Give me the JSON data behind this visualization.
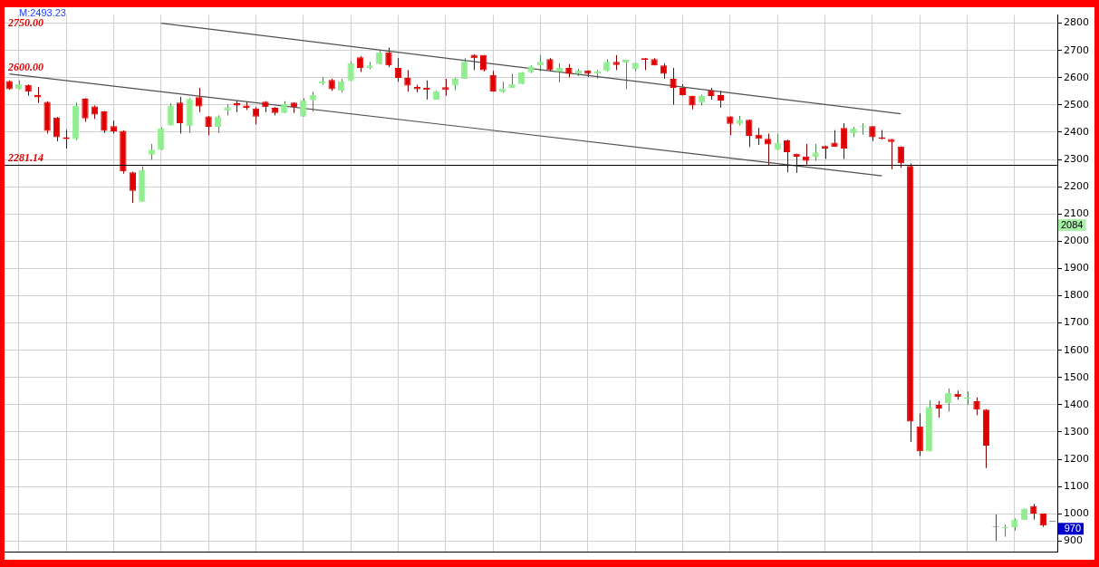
{
  "chart_data": {
    "type": "candlestick",
    "categories": [
      null,
      null,
      null,
      null,
      null,
      null,
      null,
      null,
      null,
      null,
      null,
      null,
      null,
      null,
      null,
      null,
      null,
      null,
      null,
      null,
      null,
      null,
      null,
      null,
      null,
      null,
      null,
      null,
      null,
      null,
      null,
      null,
      null,
      null,
      null,
      null,
      null,
      null,
      null,
      null,
      null,
      null,
      null,
      null,
      null,
      null,
      null,
      null,
      null,
      null,
      null,
      null,
      null,
      null,
      null,
      null,
      null,
      null,
      null,
      null,
      null,
      null,
      null,
      null,
      null,
      null,
      null,
      null,
      null,
      null,
      null,
      null,
      null,
      null,
      null,
      null,
      null,
      null,
      null,
      null,
      null,
      null,
      null,
      null,
      null,
      null,
      null,
      null,
      null,
      null,
      null,
      null,
      null,
      null,
      null,
      null,
      null,
      null,
      null,
      null,
      null,
      null,
      null,
      null,
      null,
      null,
      null,
      null,
      null,
      null,
      null
    ],
    "ohlc": [
      [
        2588,
        2590,
        2556,
        2558
      ],
      [
        2558,
        2590,
        2557,
        2577
      ],
      [
        2574,
        2575,
        2534,
        2549
      ],
      [
        2536,
        2566,
        2507,
        2528
      ],
      [
        2511,
        2514,
        2395,
        2405
      ],
      [
        2454,
        2456,
        2367,
        2382
      ],
      [
        2382,
        2409,
        2340,
        2375
      ],
      [
        2375,
        2509,
        2371,
        2496
      ],
      [
        2523,
        2525,
        2438,
        2451
      ],
      [
        2495,
        2498,
        2449,
        2465
      ],
      [
        2476,
        2478,
        2397,
        2405
      ],
      [
        2422,
        2443,
        2395,
        2403
      ],
      [
        2405,
        2407,
        2248,
        2256
      ],
      [
        2253,
        2255,
        2141,
        2185
      ],
      [
        2145,
        2275,
        2145,
        2262
      ],
      [
        2318,
        2357,
        2299,
        2336
      ],
      [
        2335,
        2418,
        2335,
        2414
      ],
      [
        2425,
        2506,
        2425,
        2496
      ],
      [
        2509,
        2530,
        2395,
        2433
      ],
      [
        2422,
        2525,
        2397,
        2522
      ],
      [
        2529,
        2563,
        2474,
        2495
      ],
      [
        2458,
        2460,
        2389,
        2420
      ],
      [
        2420,
        2462,
        2397,
        2458
      ],
      [
        2479,
        2503,
        2462,
        2492
      ],
      [
        2506,
        2516,
        2474,
        2498
      ],
      [
        2498,
        2512,
        2482,
        2490
      ],
      [
        2487,
        2492,
        2429,
        2457
      ],
      [
        2512,
        2514,
        2474,
        2492
      ],
      [
        2490,
        2492,
        2462,
        2471
      ],
      [
        2471,
        2514,
        2471,
        2503
      ],
      [
        2509,
        2509,
        2471,
        2492
      ],
      [
        2457,
        2525,
        2457,
        2517
      ],
      [
        2517,
        2549,
        2476,
        2536
      ],
      [
        2579,
        2603,
        2574,
        2587
      ],
      [
        2592,
        2596,
        2552,
        2558
      ],
      [
        2552,
        2596,
        2547,
        2588
      ],
      [
        2588,
        2661,
        2588,
        2653
      ],
      [
        2675,
        2679,
        2621,
        2636
      ],
      [
        2636,
        2658,
        2631,
        2645
      ],
      [
        2650,
        2701,
        2650,
        2693
      ],
      [
        2693,
        2710,
        2639,
        2645
      ],
      [
        2636,
        2672,
        2585,
        2599
      ],
      [
        2599,
        2628,
        2549,
        2571
      ],
      [
        2566,
        2574,
        2547,
        2558
      ],
      [
        2563,
        2590,
        2520,
        2555
      ],
      [
        2520,
        2552,
        2520,
        2550
      ],
      [
        2565,
        2596,
        2534,
        2555
      ],
      [
        2571,
        2599,
        2555,
        2596
      ],
      [
        2596,
        2672,
        2596,
        2661
      ],
      [
        2684,
        2686,
        2628,
        2672
      ],
      [
        2683,
        2683,
        2623,
        2628
      ],
      [
        2610,
        2625,
        2549,
        2549
      ],
      [
        2547,
        2585,
        2545,
        2561
      ],
      [
        2563,
        2614,
        2563,
        2577
      ],
      [
        2577,
        2620,
        2577,
        2620
      ],
      [
        2620,
        2645,
        2617,
        2642
      ],
      [
        2645,
        2683,
        2623,
        2658
      ],
      [
        2668,
        2672,
        2623,
        2628
      ],
      [
        2621,
        2653,
        2583,
        2636
      ],
      [
        2636,
        2650,
        2601,
        2614
      ],
      [
        2614,
        2632,
        2606,
        2627
      ],
      [
        2627,
        2627,
        2603,
        2614
      ],
      [
        2615,
        2628,
        2596,
        2623
      ],
      [
        2625,
        2668,
        2623,
        2658
      ],
      [
        2658,
        2683,
        2628,
        2647
      ],
      [
        2655,
        2666,
        2558,
        2666
      ],
      [
        2631,
        2655,
        2623,
        2655
      ],
      [
        2672,
        2672,
        2628,
        2666
      ],
      [
        2668,
        2672,
        2645,
        2645
      ],
      [
        2645,
        2653,
        2596,
        2614
      ],
      [
        2596,
        2636,
        2501,
        2563
      ],
      [
        2563,
        2576,
        2534,
        2536
      ],
      [
        2534,
        2534,
        2484,
        2498
      ],
      [
        2509,
        2538,
        2498,
        2533
      ],
      [
        2554,
        2563,
        2520,
        2533
      ],
      [
        2536,
        2552,
        2490,
        2516
      ],
      [
        2458,
        2458,
        2389,
        2431
      ],
      [
        2431,
        2460,
        2425,
        2446
      ],
      [
        2446,
        2446,
        2346,
        2387
      ],
      [
        2391,
        2416,
        2353,
        2376
      ],
      [
        2376,
        2395,
        2277,
        2355
      ],
      [
        2335,
        2395,
        2335,
        2362
      ],
      [
        2371,
        2373,
        2253,
        2327
      ],
      [
        2321,
        2321,
        2251,
        2310
      ],
      [
        2311,
        2357,
        2281,
        2295
      ],
      [
        2310,
        2357,
        2295,
        2326
      ],
      [
        2349,
        2351,
        2302,
        2340
      ],
      [
        2362,
        2408,
        2346,
        2346
      ],
      [
        2416,
        2433,
        2302,
        2340
      ],
      [
        2397,
        2419,
        2382,
        2413
      ],
      [
        2418,
        2433,
        2391,
        2422
      ],
      [
        2422,
        2422,
        2368,
        2382
      ],
      [
        2382,
        2408,
        2373,
        2376
      ],
      [
        2375,
        2375,
        2264,
        2364
      ],
      [
        2348,
        2348,
        2270,
        2286
      ],
      [
        2276,
        2285,
        1264,
        1338
      ],
      [
        1321,
        1368,
        1212,
        1229
      ],
      [
        1229,
        1417,
        1229,
        1392
      ],
      [
        1400,
        1414,
        1353,
        1386
      ],
      [
        1406,
        1460,
        1375,
        1444
      ],
      [
        1440,
        1452,
        1419,
        1430
      ],
      [
        1421,
        1449,
        1400,
        1427
      ],
      [
        1413,
        1427,
        1362,
        1382
      ],
      [
        1382,
        1384,
        1168,
        1250
      ],
      [
        952,
        998,
        900,
        952
      ],
      [
        947,
        960,
        916,
        951
      ],
      [
        951,
        983,
        938,
        979
      ],
      [
        978,
        1019,
        978,
        1019
      ],
      [
        1028,
        1036,
        979,
        1001
      ],
      [
        1001,
        1001,
        952,
        957
      ],
      [
        970,
        970,
        970,
        970
      ]
    ],
    "colors": [
      "#e00000",
      "#90ee90",
      "#e00000",
      "#e00000",
      "#e00000",
      "#e00000",
      "#e00000",
      "#90ee90",
      "#e00000",
      "#e00000",
      "#e00000",
      "#e00000",
      "#e00000",
      "#e00000",
      "#90ee90",
      "#90ee90",
      "#90ee90",
      "#90ee90",
      "#e00000",
      "#90ee90",
      "#e00000",
      "#e00000",
      "#90ee90",
      "#90ee90",
      "#e00000",
      "#e00000",
      "#e00000",
      "#e00000",
      "#e00000",
      "#90ee90",
      "#e00000",
      "#90ee90",
      "#90ee90",
      "#90ee90",
      "#e00000",
      "#90ee90",
      "#90ee90",
      "#e00000",
      "#90ee90",
      "#90ee90",
      "#e00000",
      "#e00000",
      "#e00000",
      "#e00000",
      "#e00000",
      "#90ee90",
      "#e00000",
      "#90ee90",
      "#90ee90",
      "#e00000",
      "#e00000",
      "#e00000",
      "#90ee90",
      "#90ee90",
      "#90ee90",
      "#90ee90",
      "#90ee90",
      "#e00000",
      "#90ee90",
      "#e00000",
      "#90ee90",
      "#e00000",
      "#90ee90",
      "#90ee90",
      "#e00000",
      "#90ee90",
      "#90ee90",
      "#e00000",
      "#e00000",
      "#e00000",
      "#e00000",
      "#e00000",
      "#e00000",
      "#90ee90",
      "#e00000",
      "#e00000",
      "#e00000",
      "#90ee90",
      "#e00000",
      "#e00000",
      "#e00000",
      "#90ee90",
      "#e00000",
      "#e00000",
      "#e00000",
      "#90ee90",
      "#e00000",
      "#e00000",
      "#e00000",
      "#90ee90",
      "#90ee90",
      "#e00000",
      "#e00000",
      "#e00000",
      "#e00000",
      "#e00000",
      "#e00000",
      "#90ee90",
      "#e00000",
      "#90ee90",
      "#e00000",
      "#90ee90",
      "#e00000",
      "#e00000",
      "#808080",
      "#90ee90",
      "#90ee90",
      "#90ee90",
      "#e00000",
      "#e00000",
      "#404040"
    ],
    "series": [
      {
        "type": "line",
        "color": "#505050",
        "values": [
          null,
          null,
          null,
          null,
          null,
          null,
          null,
          null,
          null,
          null,
          null,
          null,
          null,
          null,
          null,
          null,
          2800,
          null,
          null,
          null,
          null,
          null,
          null,
          null,
          null,
          null,
          null,
          null,
          null,
          null,
          null,
          null,
          null,
          null,
          null,
          null,
          null,
          null,
          null,
          null,
          null,
          null,
          null,
          null,
          null,
          null,
          null,
          null,
          null,
          null,
          null,
          null,
          null,
          null,
          null,
          null,
          null,
          null,
          null,
          null,
          null,
          null,
          null,
          null,
          null,
          null,
          null,
          null,
          null,
          null,
          null,
          null,
          null,
          null,
          null,
          null,
          null,
          null,
          null,
          null,
          null,
          null,
          null,
          null,
          null,
          null,
          null,
          null,
          null,
          null,
          null,
          null,
          null,
          null,
          2468,
          null,
          null,
          null,
          null,
          null,
          null,
          null,
          null,
          null,
          null,
          null,
          null,
          null,
          null,
          null,
          null
        ]
      },
      {
        "type": "line",
        "name": "2600.00",
        "color": "#505050",
        "values": [
          2614,
          null,
          null,
          null,
          null,
          null,
          null,
          null,
          null,
          null,
          null,
          null,
          null,
          null,
          null,
          null,
          null,
          null,
          null,
          null,
          null,
          null,
          null,
          null,
          null,
          null,
          null,
          null,
          null,
          null,
          null,
          null,
          null,
          null,
          null,
          null,
          null,
          null,
          null,
          null,
          null,
          null,
          null,
          null,
          null,
          null,
          null,
          null,
          null,
          null,
          null,
          null,
          null,
          null,
          null,
          null,
          null,
          null,
          null,
          null,
          null,
          null,
          null,
          null,
          null,
          null,
          null,
          null,
          null,
          null,
          null,
          null,
          null,
          null,
          null,
          null,
          null,
          null,
          null,
          null,
          null,
          null,
          null,
          null,
          null,
          null,
          null,
          null,
          null,
          null,
          null,
          null,
          2240,
          null,
          null,
          null,
          null,
          null,
          null,
          null,
          null,
          null,
          null,
          null,
          null,
          null,
          null,
          null,
          null,
          null,
          null
        ]
      }
    ],
    "ref_lines": [
      {
        "axis": "y",
        "value": 2281.14,
        "label": "2281.14",
        "color": "#000000"
      }
    ],
    "annotations": [
      "M:2493.23",
      "2750.00",
      "2084",
      "970"
    ],
    "ylim": [
      860,
      2830
    ],
    "yticks": [
      900,
      1000,
      1100,
      1200,
      1300,
      1400,
      1500,
      1600,
      1700,
      1800,
      1900,
      2000,
      2100,
      2200,
      2300,
      2400,
      2500,
      2600,
      2700,
      2800
    ],
    "grid": true,
    "tick_labels": "y"
  }
}
